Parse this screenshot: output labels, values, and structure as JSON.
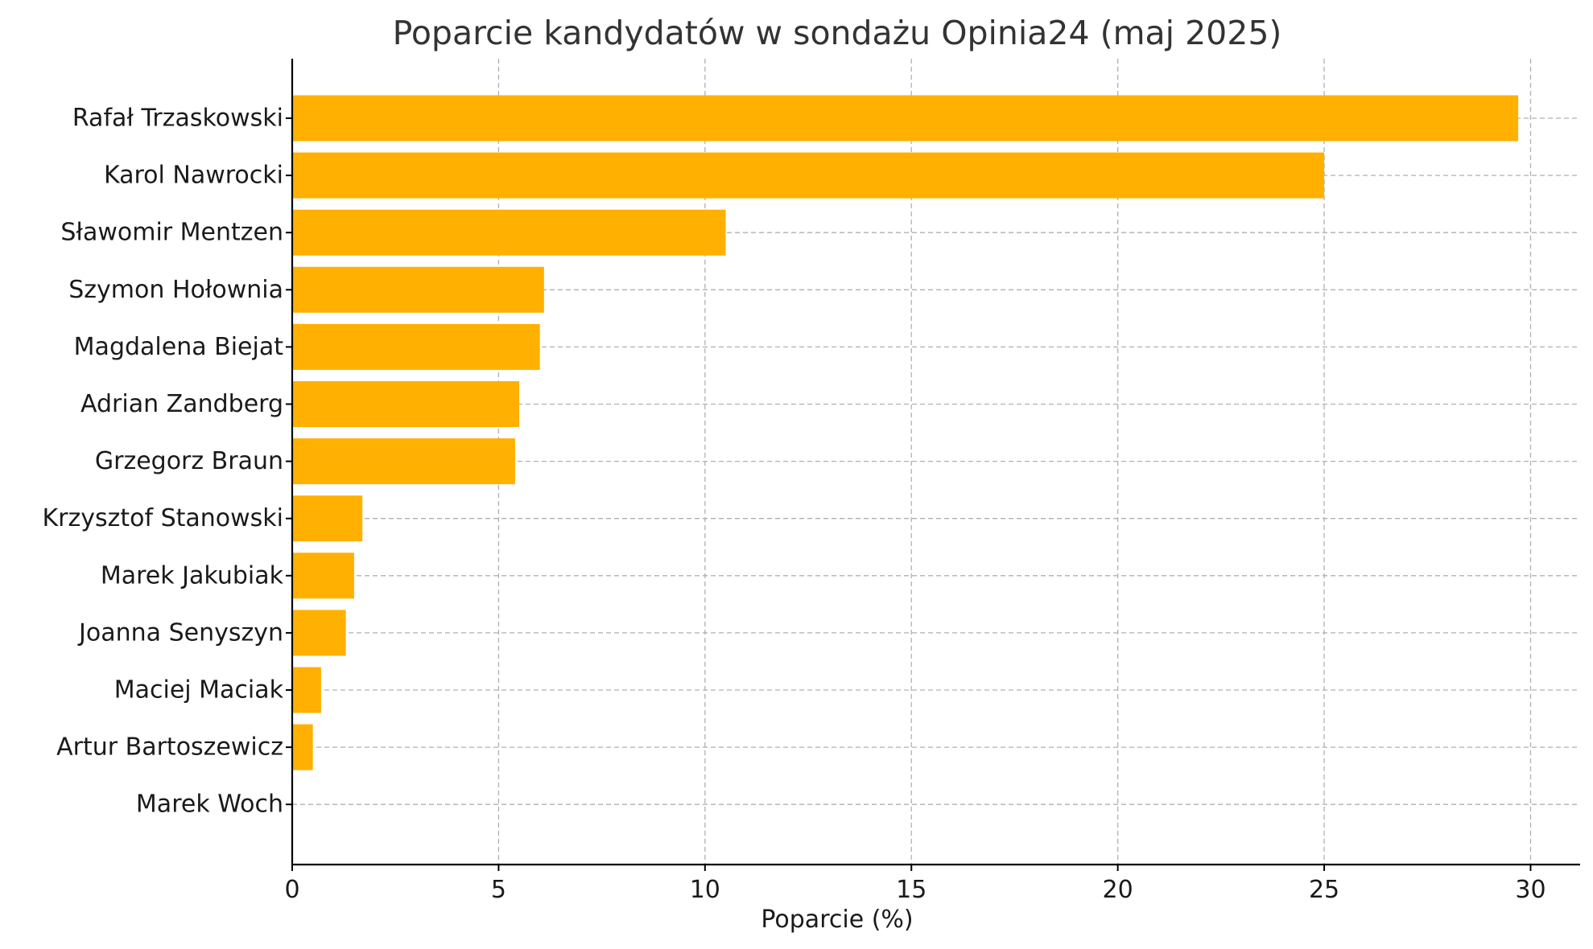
{
  "chart_data": {
    "type": "bar",
    "orientation": "horizontal",
    "title": "Poparcie kandydatów w sondażu Opinia24 (maj 2025)",
    "xlabel": "Poparcie (%)",
    "ylabel": "",
    "xlim": [
      0,
      31.2
    ],
    "xticks": [
      0,
      5,
      10,
      15,
      20,
      25,
      30
    ],
    "grid": true,
    "bar_color": "#FFB000",
    "categories": [
      "Rafał Trzaskowski",
      "Karol Nawrocki",
      "Sławomir Mentzen",
      "Szymon Hołownia",
      "Magdalena Biejat",
      "Adrian Zandberg",
      "Grzegorz Braun",
      "Krzysztof Stanowski",
      "Marek Jakubiak",
      "Joanna Senyszyn",
      "Maciej Maciak",
      "Artur Bartoszewicz",
      "Marek Woch"
    ],
    "values": [
      29.7,
      25.0,
      10.5,
      6.1,
      6.0,
      5.5,
      5.4,
      1.7,
      1.5,
      1.3,
      0.7,
      0.5,
      0.0
    ]
  }
}
